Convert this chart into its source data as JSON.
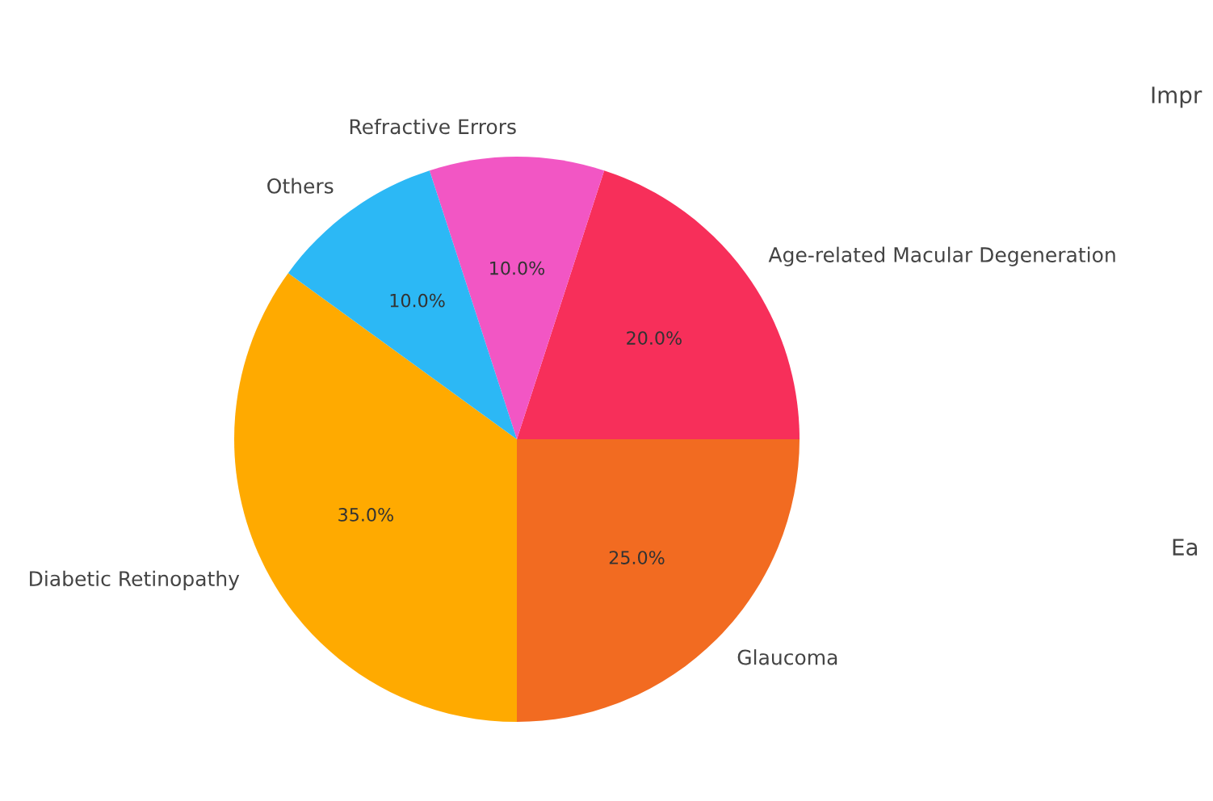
{
  "chart_data": {
    "type": "pie",
    "categories": [
      "Diabetic Retinopathy",
      "Glaucoma",
      "Age-related Macular Degeneration",
      "Refractive Errors",
      "Others"
    ],
    "values": [
      35,
      25,
      20,
      10,
      10
    ],
    "colors": [
      "#ffaa00",
      "#f26b21",
      "#f72f5a",
      "#f256c4",
      "#2cb8f5"
    ],
    "value_labels": [
      "35.0%",
      "25.0%",
      "20.0%",
      "10.0%",
      "10.0%"
    ],
    "annotations": [
      "Impr",
      "Ea"
    ]
  }
}
